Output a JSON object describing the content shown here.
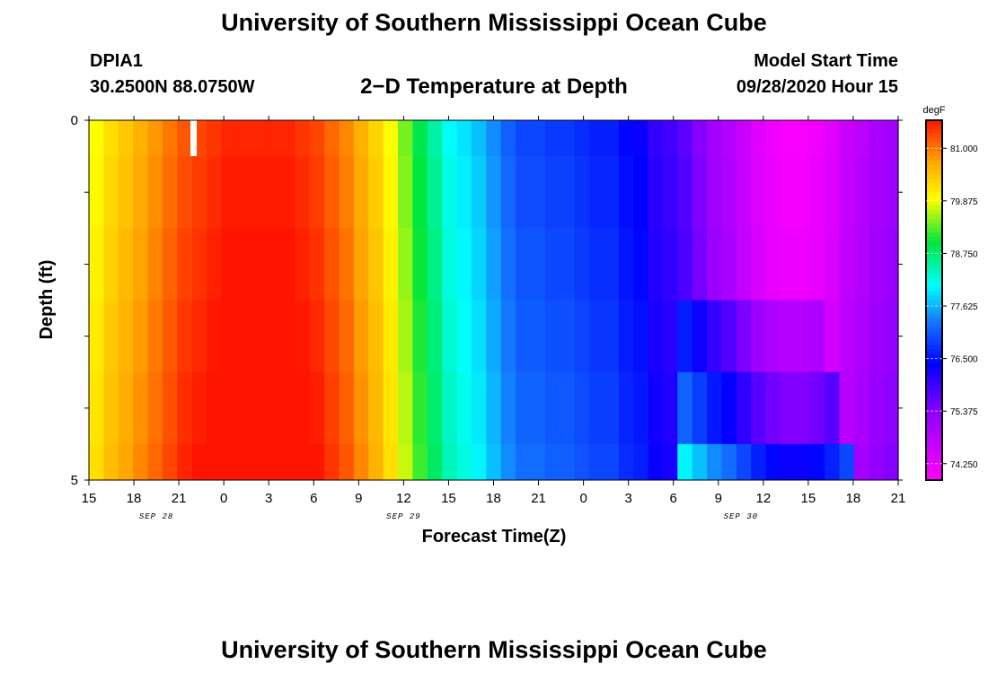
{
  "header": {
    "title": "University of Southern Mississippi Ocean Cube",
    "station_id": "DPIA1",
    "coordinates": "30.2500N 88.0750W",
    "plot_subtitle": "2−D Temperature at Depth",
    "model_start_label": "Model Start Time",
    "model_start_value": "09/28/2020 Hour 15"
  },
  "footer": {
    "title": "University of Southern Mississippi Ocean Cube"
  },
  "chart_data": {
    "type": "heatmap",
    "title": "2−D Temperature at Depth",
    "xlabel": "Forecast Time(Z)",
    "ylabel": "Depth (ft)",
    "x_tick_labels": [
      "15",
      "18",
      "21",
      "0",
      "3",
      "6",
      "9",
      "12",
      "15",
      "18",
      "21",
      "0",
      "3",
      "6",
      "9",
      "12",
      "15",
      "18",
      "21"
    ],
    "date_labels": [
      {
        "text": "SEP 28",
        "at_tick": 1.5
      },
      {
        "text": "SEP 29",
        "at_tick": 7
      },
      {
        "text": "SEP 30",
        "at_tick": 14.5
      }
    ],
    "y_tick_labels": [
      "0",
      "5"
    ],
    "ylim": [
      0,
      5
    ],
    "colorbar": {
      "unit": "degF",
      "tick_labels": [
        "81.000",
        "79.875",
        "78.750",
        "77.625",
        "76.500",
        "75.375",
        "74.250"
      ],
      "range": [
        73.9,
        81.6
      ]
    },
    "depth_levels_ft": [
      0.25,
      0.75,
      1.75,
      2.75,
      3.75,
      4.5
    ],
    "hours_from_start": [
      0,
      1,
      2,
      3,
      4,
      5,
      6,
      7,
      8,
      9,
      10,
      11,
      12,
      13,
      14,
      15,
      16,
      17,
      18,
      19,
      20,
      21,
      22,
      23,
      24,
      25,
      26,
      27,
      28,
      29,
      30,
      31,
      32,
      33,
      34,
      35,
      36,
      37,
      38,
      39,
      40,
      41,
      42,
      43,
      44,
      45,
      46,
      47,
      48,
      49,
      50,
      51,
      52,
      53,
      54
    ],
    "surface_temperature_degF": [
      79.9,
      80.2,
      80.4,
      80.6,
      80.8,
      81.0,
      81.2,
      81.3,
      81.4,
      81.5,
      81.5,
      81.5,
      81.5,
      81.5,
      81.4,
      81.3,
      81.1,
      80.9,
      80.6,
      80.3,
      79.9,
      79.4,
      78.9,
      78.5,
      78.1,
      77.9,
      77.7,
      77.4,
      77.1,
      76.9,
      76.9,
      76.8,
      76.8,
      76.7,
      76.6,
      76.6,
      76.4,
      76.3,
      76.0,
      75.9,
      75.7,
      75.4,
      75.1,
      74.9,
      74.6,
      74.3,
      74.1,
      74.0,
      74.0,
      74.1,
      74.3,
      74.6,
      74.8,
      75.0,
      75.1
    ],
    "deep_anomaly_degF": [
      {
        "depth_index": 3,
        "x_range": [
          40,
          49
        ],
        "delta": 0.7
      },
      {
        "depth_index": 4,
        "x_range": [
          40,
          50
        ],
        "delta": 1.2
      },
      {
        "depth_index": 5,
        "x_range": [
          40,
          51
        ],
        "delta": 2.0
      }
    ],
    "grid": false
  }
}
